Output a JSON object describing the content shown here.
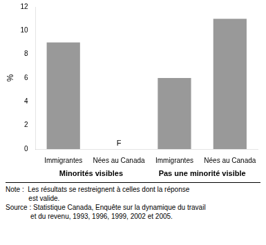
{
  "chart_data": {
    "type": "bar",
    "categories": [
      "Immigrantes",
      "Nées au Canada",
      "Immigrantes",
      "Nées au Canada"
    ],
    "values": [
      9,
      null,
      6,
      11
    ],
    "value_labels": [
      null,
      "F",
      null,
      null
    ],
    "color": "#999999",
    "ylabel": "%",
    "group_labels": [
      "Minorités visibles",
      "Pas une minorité visible"
    ],
    "notes": [
      "Note :  Les résultats se restreignent à celles dont la réponse",
      "            est valide.",
      "Source : Statistique Canada, Enquête sur la dynamique du travail",
      "             et du revenu, 1993, 1996, 1999, 2002 et 2005."
    ],
    "ylim": [
      0,
      12
    ],
    "yticks": [
      0,
      2,
      4,
      6,
      8,
      10,
      12
    ],
    "grid": false
  }
}
